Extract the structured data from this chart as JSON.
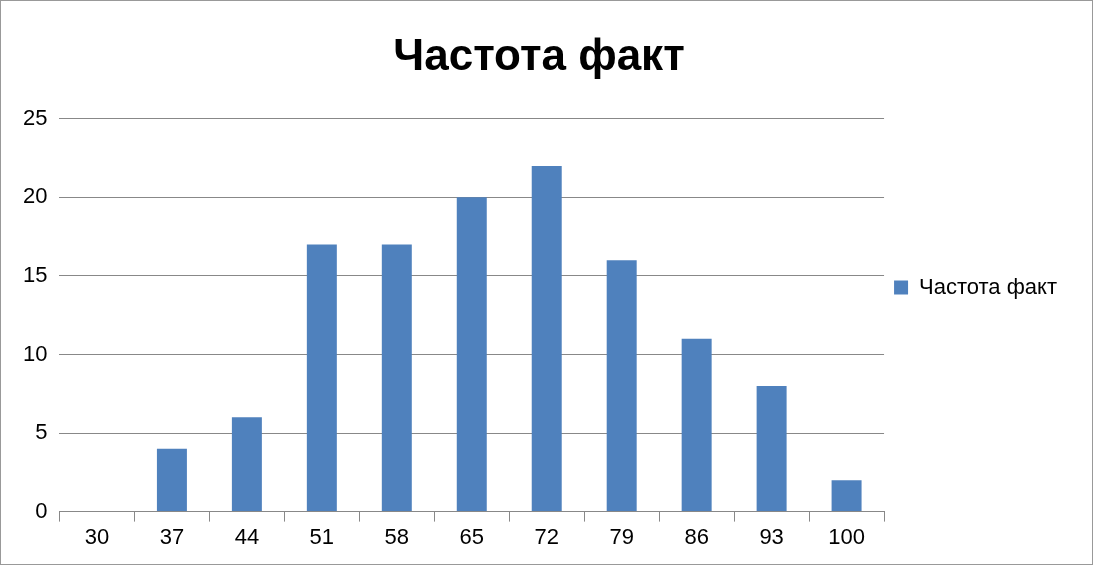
{
  "chart_data": {
    "type": "bar",
    "title": "Частота факт",
    "categories": [
      "30",
      "37",
      "44",
      "51",
      "58",
      "65",
      "72",
      "79",
      "86",
      "93",
      "100"
    ],
    "series": [
      {
        "name": "Частота факт",
        "color": "#4f81bd",
        "values": [
          0,
          4,
          6,
          17,
          17,
          20,
          22,
          16,
          11,
          8,
          2
        ]
      }
    ],
    "ylim": [
      0,
      25
    ],
    "yticks": [
      0,
      5,
      10,
      15,
      20,
      25
    ],
    "grid": "y",
    "legend": "right"
  }
}
